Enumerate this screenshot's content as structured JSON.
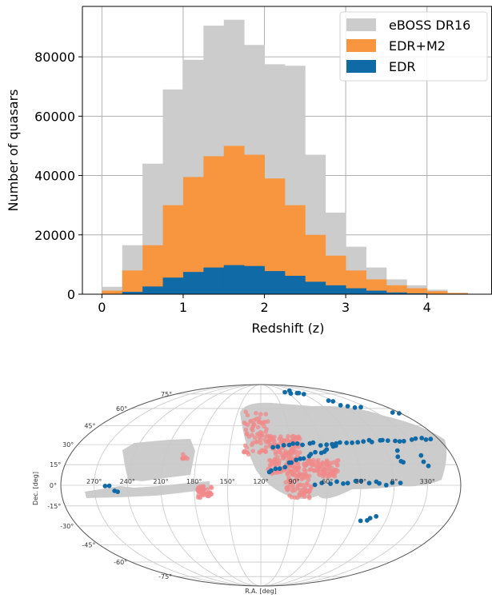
{
  "chart_data": [
    {
      "type": "bar",
      "xlabel": "Redshift (z)",
      "ylabel": "Number of quasars",
      "xlim": [
        -0.24,
        4.8
      ],
      "ylim": [
        0,
        97000
      ],
      "xticks": [
        0,
        1,
        2,
        3,
        4
      ],
      "yticks": [
        0,
        20000,
        40000,
        60000,
        80000
      ],
      "grid": true,
      "legend_position": "top-right",
      "bin_edges": [
        0,
        0.25,
        0.5,
        0.75,
        1.0,
        1.25,
        1.5,
        1.75,
        2.0,
        2.25,
        2.5,
        2.75,
        3.0,
        3.25,
        3.5,
        3.75,
        4.0,
        4.25,
        4.5
      ],
      "series": [
        {
          "name": "eBOSS DR16",
          "color": "#cccccc",
          "values": [
            2500,
            16500,
            44000,
            69000,
            79000,
            90500,
            92500,
            84000,
            77500,
            77000,
            47000,
            27500,
            16000,
            9000,
            5000,
            3000,
            1500,
            500
          ]
        },
        {
          "name": "EDR+M2",
          "color": "#f7963e",
          "values": [
            1200,
            8000,
            16500,
            30000,
            39500,
            46500,
            50000,
            47000,
            39000,
            30000,
            20000,
            13000,
            8000,
            5000,
            3000,
            2000,
            1000,
            400
          ]
        },
        {
          "name": "EDR",
          "color": "#0f6aa6",
          "values": [
            0,
            800,
            2600,
            5600,
            7500,
            9000,
            9800,
            9500,
            7800,
            6200,
            4200,
            3000,
            2000,
            1200,
            600,
            300,
            100,
            0
          ]
        }
      ]
    },
    {
      "type": "scatter",
      "projection": "mollweide",
      "xlabel": "R.A. [deg]",
      "ylabel": "Dec. [deg]",
      "ra_tick_labels": [
        "270°",
        "240°",
        "210°",
        "180°",
        "150°",
        "120°",
        "90°",
        "60°",
        "30°",
        "0°",
        "330°"
      ],
      "dec_tick_labels": [
        "75°",
        "60°",
        "45°",
        "30°",
        "15°",
        "0°",
        "-15°",
        "-30°",
        "-45°",
        "-60°",
        "-75°"
      ],
      "footprint_color": "#cccccc",
      "series": [
        {
          "color": "#f08a8a",
          "label": ""
        },
        {
          "color": "#0f6aa6",
          "label": ""
        }
      ]
    }
  ]
}
